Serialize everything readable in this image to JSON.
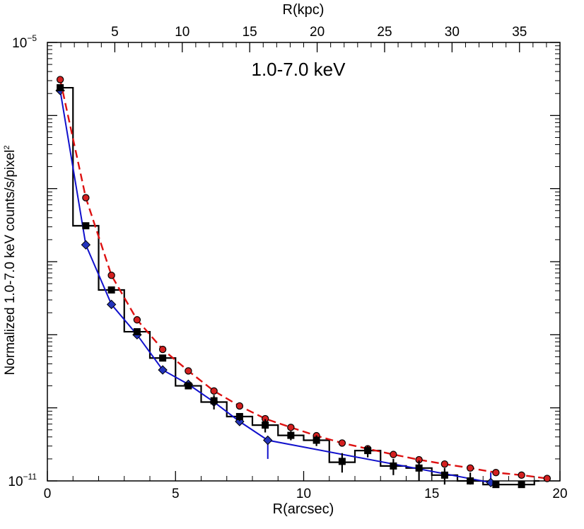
{
  "chart_data": {
    "type": "line",
    "title": "1.0-7.0 keV",
    "xlabel": "R(arcsec)",
    "ylabel": "Normalized 1.0-7.0 keV counts/s/pixel",
    "ylabel_sup": "2",
    "top_xlabel": "R(kpc)",
    "xlim": [
      0,
      20
    ],
    "ylim": [
      1e-11,
      1e-05
    ],
    "yscale": "log",
    "x_ticks": [
      "0",
      "5",
      "10",
      "15",
      "20"
    ],
    "x_tick_values": [
      0,
      5,
      10,
      15,
      20
    ],
    "top_ticks": [
      "5",
      "10",
      "15",
      "20",
      "25",
      "30",
      "35"
    ],
    "top_tick_values_kpc": [
      5,
      10,
      15,
      20,
      25,
      30,
      35
    ],
    "kpc_per_arcsec": 1.9,
    "y_tick_labels": [
      {
        "base": "10",
        "exp": "−5",
        "value": 1e-05
      },
      {
        "base": "10",
        "exp": "−11",
        "value": 1e-11
      }
    ],
    "colors": {
      "data": "#000000",
      "model_red": "#dd1111",
      "model_blue": "#1111cc",
      "red_marker_fill": "#d42020",
      "blue_marker_fill": "#2233bb"
    },
    "series": [
      {
        "name": "red-dashed-model",
        "style": "dashed",
        "color": "#dd1111",
        "marker": "circle",
        "x": [
          0.5,
          1.5,
          2.5,
          3.5,
          4.5,
          5.5,
          6.5,
          7.5,
          8.5,
          9.5,
          10.5,
          11.5,
          12.5,
          13.5,
          14.5,
          15.5,
          16.5,
          17.5,
          18.5,
          19.5
        ],
        "y": [
          3.1e-06,
          7.5e-08,
          6.5e-09,
          1.6e-09,
          6.3e-10,
          3.2e-10,
          1.7e-10,
          1.06e-10,
          7.1e-11,
          5.4e-11,
          4.15e-11,
          3.3e-11,
          2.75e-11,
          2.3e-11,
          1.95e-11,
          1.7e-11,
          1.5e-11,
          1.3e-11,
          1.2e-11,
          1.08e-11
        ]
      },
      {
        "name": "blue-model",
        "style": "solid",
        "color": "#1111cc",
        "marker": "diamond",
        "x": [
          0.5,
          1.5,
          2.5,
          3.5,
          4.5,
          5.5,
          6.5,
          7.5,
          8.6,
          17.3
        ],
        "y": [
          2.2e-06,
          1.7e-08,
          2.6e-09,
          1e-09,
          3.3e-10,
          2.1e-10,
          1.2e-10,
          6.5e-11,
          3.6e-11,
          9.5e-12
        ],
        "error_bars": [
          {
            "x": 8.6,
            "low": 2e-11,
            "high": 3.6e-11
          },
          {
            "x": 17.3,
            "low": 4e-13,
            "high": 1.3e-11
          }
        ]
      },
      {
        "name": "data-squares",
        "style": "none",
        "color": "#000000",
        "marker": "square",
        "x": [
          0.5,
          1.5,
          2.5,
          3.5,
          4.5,
          5.5,
          6.5,
          7.5,
          8.5,
          9.5,
          10.5,
          11.5,
          12.5,
          13.5,
          14.5,
          15.5,
          16.5,
          17.5,
          18.5
        ],
        "y": [
          2.4e-06,
          3.1e-08,
          4.1e-09,
          1.1e-09,
          4.8e-10,
          2e-10,
          1.25e-10,
          7.6e-11,
          5.8e-11,
          4.2e-11,
          3.6e-11,
          1.85e-11,
          2.6e-11,
          1.6e-11,
          1.5e-11,
          1.2e-11,
          1e-11,
          4.8e-12,
          6e-12
        ],
        "err_low": [
          2.35e-06,
          3e-08,
          4e-09,
          1.05e-09,
          4.6e-10,
          1.9e-10,
          9.5e-11,
          6.6e-11,
          4.6e-11,
          3.6e-11,
          3e-11,
          1.3e-11,
          2.1e-11,
          1.2e-11,
          1e-11,
          4.3e-12,
          2.8e-12,
          1e-12,
          1.5e-12
        ],
        "err_high": [
          2.45e-06,
          3.2e-08,
          4.2e-09,
          1.15e-09,
          5e-10,
          2.1e-10,
          1.5e-10,
          8.4e-11,
          7e-11,
          4.8e-11,
          4.2e-11,
          2.4e-11,
          3e-11,
          2e-11,
          1.9e-11,
          1.5e-11,
          1.3e-11,
          7e-12,
          8.5e-12
        ]
      }
    ],
    "histogram": {
      "name": "data-histogram",
      "color": "#000000",
      "edges": [
        0.5,
        1.0,
        2.0,
        3.0,
        4.0,
        5.0,
        6.0,
        7.0,
        8.0,
        9.0,
        10.0,
        11.0,
        12.0,
        13.0,
        14.0,
        15.0,
        16.0,
        17.0,
        18.0,
        19.0,
        19.2
      ],
      "values": [
        2.4e-06,
        3.1e-08,
        4.1e-09,
        1.1e-09,
        4.8e-10,
        2e-10,
        1.2e-10,
        7.6e-11,
        5.8e-11,
        4.2e-11,
        3.6e-11,
        1.8e-11,
        2.6e-11,
        1.6e-11,
        1.5e-11,
        1.2e-11,
        1e-11,
        5.5e-12,
        6e-12,
        1e-11
      ]
    }
  }
}
